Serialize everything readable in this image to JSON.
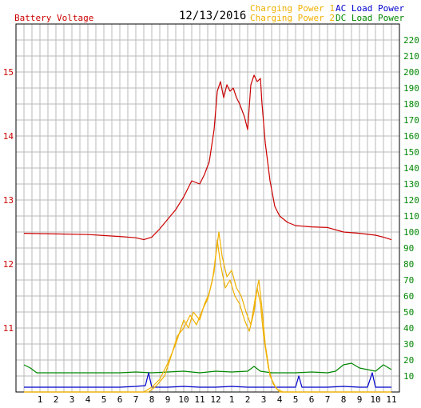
{
  "header": {
    "left_title": "Battery Voltage",
    "date": "12/13/2016",
    "legend": [
      {
        "label": "Charging Power 1",
        "color": "#f0b000"
      },
      {
        "label": "Charging Power 2",
        "color": "#f0b000"
      },
      {
        "label": "AC Load Power",
        "color": "#0000cc"
      },
      {
        "label": "DC Load Power",
        "color": "#008800"
      }
    ]
  },
  "chart_data": {
    "type": "line",
    "x_tick_labels": [
      "1",
      "2",
      "3",
      "4",
      "5",
      "6",
      "7",
      "8",
      "9",
      "10",
      "11",
      "12",
      "1",
      "2",
      "3",
      "4",
      "5",
      "6",
      "7",
      "8",
      "9",
      "10",
      "11"
    ],
    "y_left": {
      "ticks": [
        "11",
        "12",
        "13",
        "14",
        "15"
      ],
      "range": [
        10.0,
        15.75
      ],
      "color": "#cc0000"
    },
    "y_right": {
      "ticks": [
        "10",
        "20",
        "30",
        "40",
        "50",
        "60",
        "70",
        "80",
        "90",
        "100",
        "110",
        "120",
        "130",
        "140",
        "150",
        "160",
        "170",
        "180",
        "190",
        "200",
        "210",
        "220"
      ],
      "range": [
        0,
        230
      ],
      "color": "#008800"
    },
    "grid": true,
    "series": [
      {
        "name": "Battery Voltage",
        "axis": "left",
        "color": "#cc0000",
        "points": [
          [
            0,
            12.48
          ],
          [
            2,
            12.47
          ],
          [
            4,
            12.46
          ],
          [
            6,
            12.43
          ],
          [
            7,
            12.41
          ],
          [
            7.5,
            12.38
          ],
          [
            8,
            12.42
          ],
          [
            8.5,
            12.55
          ],
          [
            9,
            12.7
          ],
          [
            9.5,
            12.85
          ],
          [
            10,
            13.05
          ],
          [
            10.5,
            13.3
          ],
          [
            11,
            13.25
          ],
          [
            11.3,
            13.4
          ],
          [
            11.6,
            13.6
          ],
          [
            11.9,
            14.1
          ],
          [
            12.1,
            14.7
          ],
          [
            12.3,
            14.85
          ],
          [
            12.5,
            14.6
          ],
          [
            12.7,
            14.8
          ],
          [
            12.9,
            14.7
          ],
          [
            13.1,
            14.75
          ],
          [
            13.3,
            14.6
          ],
          [
            13.5,
            14.5
          ],
          [
            13.8,
            14.3
          ],
          [
            14.0,
            14.1
          ],
          [
            14.2,
            14.8
          ],
          [
            14.4,
            14.95
          ],
          [
            14.6,
            14.85
          ],
          [
            14.8,
            14.9
          ],
          [
            14.9,
            14.5
          ],
          [
            15.1,
            13.9
          ],
          [
            15.4,
            13.3
          ],
          [
            15.7,
            12.9
          ],
          [
            16,
            12.75
          ],
          [
            16.5,
            12.65
          ],
          [
            17,
            12.6
          ],
          [
            18,
            12.58
          ],
          [
            19,
            12.57
          ],
          [
            20,
            12.5
          ],
          [
            21,
            12.48
          ],
          [
            22,
            12.45
          ],
          [
            22.5,
            12.42
          ],
          [
            23,
            12.38
          ]
        ]
      },
      {
        "name": "Charging Power 1",
        "axis": "right",
        "color": "#f0b000",
        "points": [
          [
            0,
            0
          ],
          [
            7.5,
            0
          ],
          [
            8,
            3
          ],
          [
            8.5,
            8
          ],
          [
            9,
            18
          ],
          [
            9.5,
            30
          ],
          [
            10,
            45
          ],
          [
            10.3,
            40
          ],
          [
            10.6,
            50
          ],
          [
            11,
            45
          ],
          [
            11.3,
            55
          ],
          [
            11.6,
            62
          ],
          [
            11.9,
            75
          ],
          [
            12.1,
            95
          ],
          [
            12.3,
            80
          ],
          [
            12.6,
            65
          ],
          [
            12.9,
            70
          ],
          [
            13.2,
            60
          ],
          [
            13.5,
            55
          ],
          [
            13.8,
            45
          ],
          [
            14.1,
            38
          ],
          [
            14.4,
            50
          ],
          [
            14.6,
            65
          ],
          [
            14.8,
            55
          ],
          [
            15.0,
            35
          ],
          [
            15.3,
            15
          ],
          [
            15.6,
            5
          ],
          [
            16,
            0
          ],
          [
            23,
            0
          ]
        ]
      },
      {
        "name": "Charging Power 2",
        "axis": "right",
        "color": "#f0b000",
        "points": [
          [
            0,
            0
          ],
          [
            7.8,
            0
          ],
          [
            8.3,
            4
          ],
          [
            8.8,
            10
          ],
          [
            9.2,
            22
          ],
          [
            9.6,
            35
          ],
          [
            10,
            40
          ],
          [
            10.4,
            48
          ],
          [
            10.8,
            42
          ],
          [
            11.2,
            52
          ],
          [
            11.5,
            58
          ],
          [
            11.8,
            70
          ],
          [
            12.0,
            85
          ],
          [
            12.2,
            100
          ],
          [
            12.4,
            85
          ],
          [
            12.7,
            72
          ],
          [
            13,
            76
          ],
          [
            13.3,
            65
          ],
          [
            13.6,
            60
          ],
          [
            13.9,
            50
          ],
          [
            14.2,
            42
          ],
          [
            14.5,
            60
          ],
          [
            14.7,
            70
          ],
          [
            14.9,
            52
          ],
          [
            15.1,
            30
          ],
          [
            15.4,
            10
          ],
          [
            15.8,
            2
          ],
          [
            16.2,
            0
          ],
          [
            23,
            0
          ]
        ]
      },
      {
        "name": "AC Load Power",
        "axis": "right",
        "color": "#0000cc",
        "points": [
          [
            0,
            3
          ],
          [
            2,
            3
          ],
          [
            4,
            3
          ],
          [
            6,
            3
          ],
          [
            7,
            3.5
          ],
          [
            7.6,
            4
          ],
          [
            7.8,
            12
          ],
          [
            8.0,
            3
          ],
          [
            9,
            3
          ],
          [
            10,
            3.5
          ],
          [
            11,
            3
          ],
          [
            12,
            3
          ],
          [
            13,
            3.5
          ],
          [
            14,
            3
          ],
          [
            15,
            3
          ],
          [
            16,
            3
          ],
          [
            17,
            3
          ],
          [
            17.2,
            10
          ],
          [
            17.4,
            3
          ],
          [
            18,
            3
          ],
          [
            19,
            3
          ],
          [
            20,
            3.5
          ],
          [
            21,
            3
          ],
          [
            21.5,
            3
          ],
          [
            21.8,
            12
          ],
          [
            22,
            3
          ],
          [
            23,
            3
          ]
        ]
      },
      {
        "name": "DC Load Power",
        "axis": "right",
        "color": "#008800",
        "points": [
          [
            0,
            17
          ],
          [
            0.4,
            15
          ],
          [
            0.8,
            12
          ],
          [
            2,
            12
          ],
          [
            4,
            12
          ],
          [
            6,
            12
          ],
          [
            7,
            12.5
          ],
          [
            8,
            12
          ],
          [
            9,
            12.5
          ],
          [
            10,
            13
          ],
          [
            11,
            12
          ],
          [
            12,
            13
          ],
          [
            13,
            12.5
          ],
          [
            14,
            13
          ],
          [
            14.4,
            16
          ],
          [
            14.8,
            13
          ],
          [
            15.5,
            12
          ],
          [
            16,
            12
          ],
          [
            17,
            12
          ],
          [
            18,
            12.5
          ],
          [
            19,
            12
          ],
          [
            19.5,
            13
          ],
          [
            20,
            17
          ],
          [
            20.5,
            18
          ],
          [
            21,
            15
          ],
          [
            21.5,
            14
          ],
          [
            22,
            13
          ],
          [
            22.5,
            17
          ],
          [
            23,
            14
          ]
        ]
      }
    ]
  }
}
